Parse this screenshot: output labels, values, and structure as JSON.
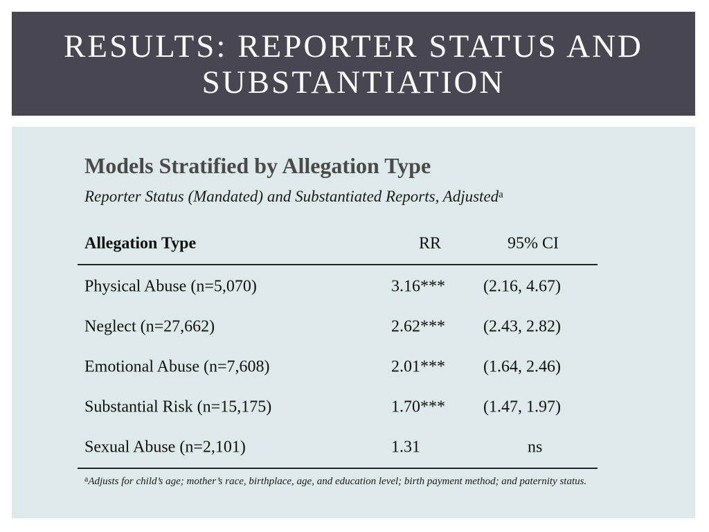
{
  "slide": {
    "title": "RESULTS: REPORTER STATUS AND SUBSTANTIATION"
  },
  "content": {
    "heading": "Models Stratified by Allegation Type",
    "subheading": "Reporter Status (Mandated) and Substantiated Reports, Adjusted",
    "subheading_marker": "a"
  },
  "table": {
    "headers": {
      "type": "Allegation Type",
      "rr": "RR",
      "ci": "95% CI"
    },
    "rows": [
      {
        "type": "Physical Abuse (n=5,070)",
        "rr": "3.16***",
        "ci": "(2.16, 4.67)"
      },
      {
        "type": "Neglect (n=27,662)",
        "rr": "2.62***",
        "ci": "(2.43, 2.82)"
      },
      {
        "type": "Emotional Abuse (n=7,608)",
        "rr": "2.01***",
        "ci": "(1.64, 2.46)"
      },
      {
        "type": "Substantial Risk (n=15,175)",
        "rr": "1.70***",
        "ci": "(1.47, 1.97)"
      },
      {
        "type": "Sexual Abuse (n=2,101)",
        "rr": "1.31",
        "ci": "ns"
      }
    ]
  },
  "footnote": {
    "marker": "a",
    "text": "Adjusts for child’s age; mother’s race, birthplace, age, and education level; birth payment method; and paternity status."
  }
}
